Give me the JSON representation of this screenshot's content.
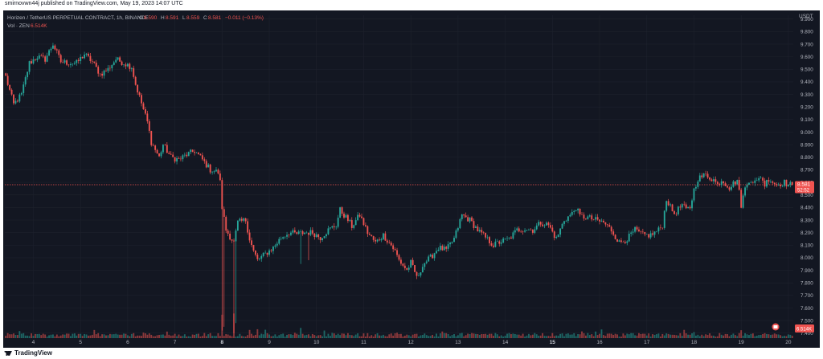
{
  "header": {
    "published": "smirnovwn44j published on TradingView.com, May 19, 2023 14:07 UTC",
    "symbol": "Horizen / TetherUS PERPETUAL CONTRACT, 1h, BINANCE",
    "o_label": "O",
    "o_value": "8.590",
    "h_label": "H",
    "h_value": "8.591",
    "l_label": "L",
    "l_value": "8.559",
    "c_label": "C",
    "c_value": "8.581",
    "change": "−0.011 (−0.13%)",
    "vol_label": "Vol · ZEN",
    "vol_value": "6.514K"
  },
  "footer": {
    "brand": "TradingView"
  },
  "colors": {
    "up": "#26a69a",
    "down": "#ef5350",
    "background": "#131722",
    "grid": "#1e222d",
    "text": "#b2b5be",
    "price_line": "#ef5350"
  },
  "chart_data": {
    "type": "candlestick",
    "currency": "USDT",
    "y_ticks": [
      "9.900",
      "9.800",
      "9.700",
      "9.600",
      "9.500",
      "9.400",
      "9.300",
      "9.200",
      "9.100",
      "9.000",
      "8.900",
      "8.800",
      "8.700",
      "8.600",
      "8.500",
      "8.400",
      "8.300",
      "8.200",
      "8.100",
      "8.000",
      "7.900",
      "7.800",
      "7.700",
      "7.600",
      "7.500",
      "7.400"
    ],
    "ylim": [
      7.36,
      9.93
    ],
    "x_ticks": [
      {
        "label": "4",
        "bar": 14
      },
      {
        "label": "5",
        "bar": 38
      },
      {
        "label": "6",
        "bar": 62
      },
      {
        "label": "7",
        "bar": 86
      },
      {
        "label": "8",
        "bar": 110,
        "bold": true
      },
      {
        "label": "9",
        "bar": 134
      },
      {
        "label": "10",
        "bar": 158
      },
      {
        "label": "11",
        "bar": 182
      },
      {
        "label": "12",
        "bar": 206
      },
      {
        "label": "13",
        "bar": 230
      },
      {
        "label": "14",
        "bar": 254
      },
      {
        "label": "15",
        "bar": 278,
        "bold": true
      },
      {
        "label": "16",
        "bar": 302
      },
      {
        "label": "17",
        "bar": 326
      },
      {
        "label": "18",
        "bar": 350
      },
      {
        "label": "19",
        "bar": 374
      },
      {
        "label": "20",
        "bar": 398
      }
    ],
    "last_price": "8.581",
    "countdown": "52:52",
    "last_volume": "6.514K",
    "path": [
      [
        0,
        9.44
      ],
      [
        4,
        9.22
      ],
      [
        8,
        9.3
      ],
      [
        12,
        9.55
      ],
      [
        16,
        9.6
      ],
      [
        20,
        9.58
      ],
      [
        24,
        9.7
      ],
      [
        28,
        9.56
      ],
      [
        32,
        9.55
      ],
      [
        36,
        9.55
      ],
      [
        40,
        9.62
      ],
      [
        44,
        9.56
      ],
      [
        48,
        9.46
      ],
      [
        52,
        9.5
      ],
      [
        56,
        9.58
      ],
      [
        60,
        9.55
      ],
      [
        64,
        9.52
      ],
      [
        66,
        9.38
      ],
      [
        70,
        9.18
      ],
      [
        72,
        9.08
      ],
      [
        74,
        8.92
      ],
      [
        78,
        8.8
      ],
      [
        80,
        8.9
      ],
      [
        84,
        8.8
      ],
      [
        88,
        8.78
      ],
      [
        92,
        8.82
      ],
      [
        96,
        8.85
      ],
      [
        100,
        8.78
      ],
      [
        104,
        8.7
      ],
      [
        108,
        8.68
      ],
      [
        109,
        8.6
      ],
      [
        110,
        8.4
      ],
      [
        112,
        8.22
      ],
      [
        116,
        8.12
      ],
      [
        118,
        8.28
      ],
      [
        122,
        8.3
      ],
      [
        124,
        8.15
      ],
      [
        126,
        8.05
      ],
      [
        128,
        7.98
      ],
      [
        132,
        8.03
      ],
      [
        136,
        8.08
      ],
      [
        140,
        8.16
      ],
      [
        144,
        8.2
      ],
      [
        148,
        8.19
      ],
      [
        152,
        8.2
      ],
      [
        156,
        8.2
      ],
      [
        160,
        8.16
      ],
      [
        164,
        8.22
      ],
      [
        168,
        8.26
      ],
      [
        170,
        8.38
      ],
      [
        174,
        8.3
      ],
      [
        176,
        8.25
      ],
      [
        180,
        8.34
      ],
      [
        184,
        8.2
      ],
      [
        188,
        8.12
      ],
      [
        192,
        8.18
      ],
      [
        196,
        8.1
      ],
      [
        198,
        8.05
      ],
      [
        200,
        7.98
      ],
      [
        204,
        7.9
      ],
      [
        206,
        7.96
      ],
      [
        208,
        7.88
      ],
      [
        210,
        7.84
      ],
      [
        212,
        7.95
      ],
      [
        216,
        8.0
      ],
      [
        220,
        8.08
      ],
      [
        224,
        8.06
      ],
      [
        228,
        8.15
      ],
      [
        232,
        8.34
      ],
      [
        236,
        8.3
      ],
      [
        240,
        8.22
      ],
      [
        244,
        8.16
      ],
      [
        248,
        8.1
      ],
      [
        252,
        8.13
      ],
      [
        256,
        8.15
      ],
      [
        260,
        8.22
      ],
      [
        264,
        8.23
      ],
      [
        268,
        8.22
      ],
      [
        272,
        8.28
      ],
      [
        276,
        8.26
      ],
      [
        280,
        8.15
      ],
      [
        284,
        8.3
      ],
      [
        288,
        8.35
      ],
      [
        290,
        8.4
      ],
      [
        292,
        8.33
      ],
      [
        296,
        8.32
      ],
      [
        300,
        8.3
      ],
      [
        304,
        8.28
      ],
      [
        308,
        8.22
      ],
      [
        312,
        8.12
      ],
      [
        316,
        8.15
      ],
      [
        320,
        8.22
      ],
      [
        324,
        8.18
      ],
      [
        328,
        8.18
      ],
      [
        332,
        8.22
      ],
      [
        334,
        8.26
      ],
      [
        336,
        8.47
      ],
      [
        338,
        8.4
      ],
      [
        340,
        8.35
      ],
      [
        344,
        8.42
      ],
      [
        346,
        8.38
      ],
      [
        348,
        8.4
      ],
      [
        350,
        8.54
      ],
      [
        352,
        8.63
      ],
      [
        356,
        8.66
      ],
      [
        360,
        8.62
      ],
      [
        362,
        8.58
      ],
      [
        364,
        8.62
      ],
      [
        368,
        8.56
      ],
      [
        372,
        8.62
      ],
      [
        374,
        8.42
      ],
      [
        376,
        8.55
      ],
      [
        378,
        8.62
      ],
      [
        382,
        8.6
      ],
      [
        384,
        8.65
      ],
      [
        386,
        8.58
      ],
      [
        388,
        8.63
      ],
      [
        392,
        8.58
      ],
      [
        396,
        8.6
      ],
      [
        398,
        8.58
      ],
      [
        400,
        8.581
      ]
    ],
    "spikes": [
      [
        110,
        7.42
      ],
      [
        111,
        7.45
      ],
      [
        116,
        7.4
      ],
      [
        117,
        7.48
      ],
      [
        150,
        7.95
      ],
      [
        154,
        7.98
      ],
      [
        209,
        7.83
      ],
      [
        258,
        8.18
      ]
    ],
    "volume_spikes": [
      [
        110,
        0.78
      ],
      [
        116,
        0.82
      ],
      [
        150,
        0.34
      ],
      [
        300,
        0.22
      ],
      [
        350,
        0.2
      ]
    ]
  }
}
